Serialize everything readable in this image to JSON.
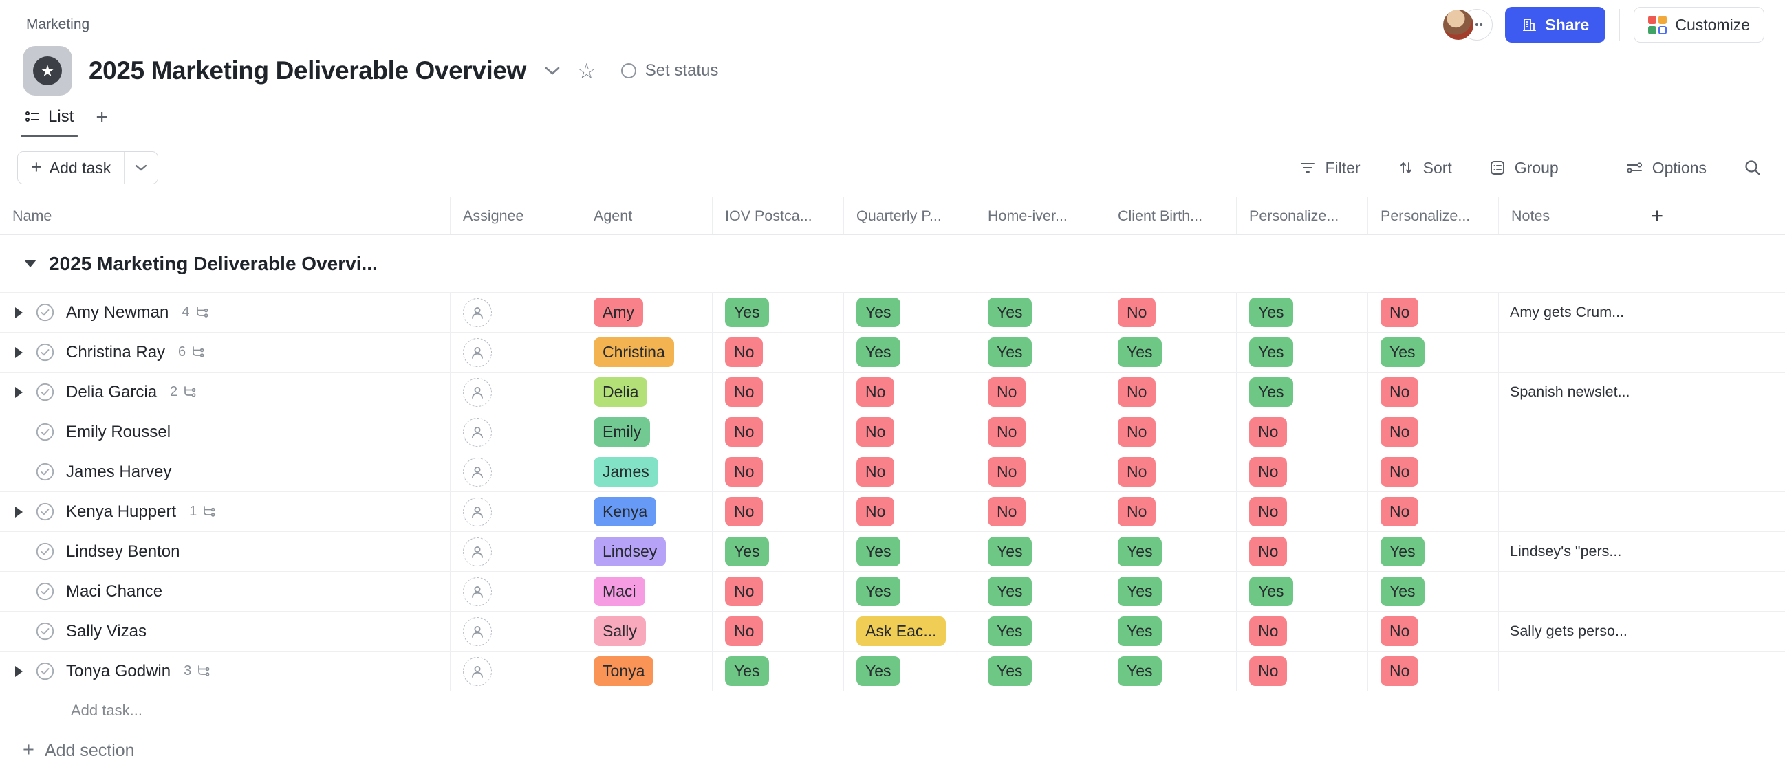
{
  "breadcrumb": "Marketing",
  "icons": {
    "ellipsis": "•••",
    "plus": "+",
    "star_filled": "★",
    "star_outline": "☆"
  },
  "header": {
    "title": "2025 Marketing Deliverable Overview",
    "set_status_label": "Set status",
    "share_label": "Share",
    "customize_label": "Customize"
  },
  "tabs": {
    "list_label": "List"
  },
  "toolbar": {
    "add_task_label": "Add task",
    "filter_label": "Filter",
    "sort_label": "Sort",
    "group_label": "Group",
    "options_label": "Options"
  },
  "colors": {
    "accent_blue": "#3d5af1",
    "yes_green": "#6fc786",
    "no_red": "#f9818a",
    "warning_yellow": "#f0ce55"
  },
  "table": {
    "columns": [
      "Name",
      "Assignee",
      "Agent",
      "IOV Postca...",
      "Quarterly P...",
      "Home-iver...",
      "Client Birth...",
      "Personalize...",
      "Personalize...",
      "Notes"
    ],
    "group_title": "2025 Marketing Deliverable Overvi...",
    "rows": [
      {
        "name": "Amy Newman",
        "subtasks": "4",
        "agent": "Amy",
        "agent_color": "#f9818a",
        "statuses": [
          "Yes",
          "Yes",
          "Yes",
          "No",
          "Yes",
          "No"
        ],
        "notes": "Amy gets Crum..."
      },
      {
        "name": "Christina Ray",
        "subtasks": "6",
        "agent": "Christina",
        "agent_color": "#f2b350",
        "statuses": [
          "No",
          "Yes",
          "Yes",
          "Yes",
          "Yes",
          "Yes"
        ],
        "notes": ""
      },
      {
        "name": "Delia Garcia",
        "subtasks": "2",
        "agent": "Delia",
        "agent_color": "#b4e078",
        "statuses": [
          "No",
          "No",
          "No",
          "No",
          "Yes",
          "No"
        ],
        "notes": "Spanish newslet..."
      },
      {
        "name": "Emily Roussel",
        "subtasks": "",
        "agent": "Emily",
        "agent_color": "#72ca92",
        "statuses": [
          "No",
          "No",
          "No",
          "No",
          "No",
          "No"
        ],
        "notes": ""
      },
      {
        "name": "James Harvey",
        "subtasks": "",
        "agent": "James",
        "agent_color": "#81e2c5",
        "statuses": [
          "No",
          "No",
          "No",
          "No",
          "No",
          "No"
        ],
        "notes": ""
      },
      {
        "name": "Kenya Huppert",
        "subtasks": "1",
        "agent": "Kenya",
        "agent_color": "#679af6",
        "statuses": [
          "No",
          "No",
          "No",
          "No",
          "No",
          "No"
        ],
        "notes": ""
      },
      {
        "name": "Lindsey Benton",
        "subtasks": "",
        "agent": "Lindsey",
        "agent_color": "#b6a3f8",
        "statuses": [
          "Yes",
          "Yes",
          "Yes",
          "Yes",
          "No",
          "Yes"
        ],
        "notes": "Lindsey's \"pers..."
      },
      {
        "name": "Maci Chance",
        "subtasks": "",
        "agent": "Maci",
        "agent_color": "#f69ce3",
        "statuses": [
          "No",
          "Yes",
          "Yes",
          "Yes",
          "Yes",
          "Yes"
        ],
        "notes": ""
      },
      {
        "name": "Sally Vizas",
        "subtasks": "",
        "agent": "Sally",
        "agent_color": "#f9a9bc",
        "statuses": [
          "No",
          "Ask Eac...",
          "Yes",
          "Yes",
          "No",
          "No"
        ],
        "notes": "Sally gets perso..."
      },
      {
        "name": "Tonya Godwin",
        "subtasks": "3",
        "agent": "Tonya",
        "agent_color": "#f99356",
        "statuses": [
          "Yes",
          "Yes",
          "Yes",
          "Yes",
          "No",
          "No"
        ],
        "notes": ""
      }
    ],
    "add_task_row_label": "Add task...",
    "add_section_label": "Add section"
  }
}
